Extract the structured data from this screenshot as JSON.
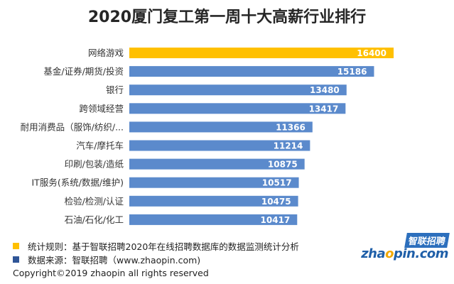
{
  "title": "2020厦门复工第一周十大高薪行业排行",
  "colors": {
    "highlight": "#FFC000",
    "bar": "#5B8ACC"
  },
  "chart_data": {
    "type": "bar",
    "orientation": "horizontal",
    "title": "2020厦门复工第一周十大高薪行业排行",
    "categories": [
      "网络游戏",
      "基金/证券/期货/投资",
      "银行",
      "跨领域经营",
      "耐用消费品（服饰/纺织/...",
      "汽车/摩托车",
      "印刷/包装/造纸",
      "IT服务(系统/数据/维护)",
      "检验/检测/认证",
      "石油/石化/化工"
    ],
    "values": [
      16400,
      15186,
      13480,
      13417,
      11366,
      11214,
      10875,
      10517,
      10475,
      10417
    ],
    "highlight_index": 0,
    "data_labels": true,
    "grid": false
  },
  "footer": {
    "rule_text": "统计规则：基于智联招聘2020年在线招聘数据库的数据监测统计分析",
    "source_text": "数据来源：智联招聘（www.zhaopin.com)",
    "copyright": "Copyright©2019 zhaopin all rights reserved",
    "rule_color": "#FFC000",
    "source_color": "#2F5597"
  },
  "logo": {
    "brand_cn": "智联招聘",
    "brand_en_before": "zha",
    "brand_en_accent": "o",
    "brand_en_after": "pin.com"
  }
}
